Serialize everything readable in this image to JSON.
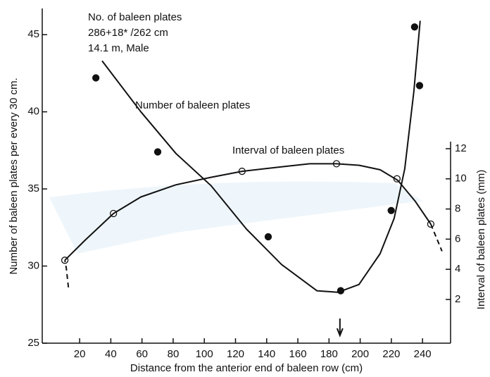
{
  "chart_data": {
    "type": "line",
    "x_label": "Distance from the anterior end of baleen row (cm)",
    "y_label": "Number of baleen plates per every 30 cm.",
    "y2_label": "Interval of baleen plates (mm)",
    "notes": [
      "No. of baleen plates",
      "286+18* /262 cm",
      "14.1 m, Male"
    ],
    "xlim": [
      -4,
      258
    ],
    "xticks": [
      20,
      40,
      60,
      80,
      100,
      120,
      140,
      160,
      180,
      200,
      220,
      240
    ],
    "ylim": [
      25,
      46.7
    ],
    "yticks": [
      25,
      30,
      35,
      40,
      45
    ],
    "y2lim": [
      -0.9,
      21.3
    ],
    "y2ticks": [
      2,
      4,
      6,
      8,
      10,
      12
    ],
    "arrow_x": 187,
    "color": "#111111",
    "series": [
      {
        "axis": "y",
        "marker": "filled",
        "x": [
          30.4,
          70.1,
          141,
          187.5,
          219.9,
          234.9,
          238.1
        ],
        "values": [
          42.2,
          37.4,
          31.9,
          28.4,
          33.6,
          45.5,
          41.7
        ]
      },
      {
        "name": "Number of baleen plates",
        "axis": "y",
        "marker": "none",
        "dashed": false,
        "x": [
          34.4,
          59.3,
          81.8,
          104.4,
          127,
          149.6,
          172.2,
          185.7,
          199.2,
          212.8,
          221.8,
          228.6,
          234.4,
          238.5
        ],
        "values": [
          43.3,
          40.0,
          37.3,
          35.2,
          32.4,
          30.1,
          28.4,
          28.3,
          28.8,
          30.8,
          33.1,
          36.3,
          41.3,
          45.9
        ]
      },
      {
        "axis": "y2",
        "marker": "open",
        "x": [
          10.5,
          41.7,
          124.2,
          184.8,
          223.6,
          245.3
        ],
        "values": [
          4.6,
          7.7,
          10.5,
          11.0,
          10.0,
          7.0
        ]
      },
      {
        "name": "Interval of baleen plates",
        "axis": "y2",
        "marker": "none",
        "dashed": false,
        "x": [
          10.5,
          23.2,
          41.7,
          59.3,
          81.7,
          104.3,
          124.2,
          149.5,
          167.6,
          184.8,
          199.2,
          212.8,
          224.1,
          235.4,
          245.3
        ],
        "values": [
          4.6,
          5.9,
          7.7,
          8.8,
          9.6,
          10.1,
          10.5,
          10.8,
          11.0,
          11.0,
          10.9,
          10.6,
          9.9,
          8.5,
          7.0
        ]
      },
      {
        "axis": "y2",
        "marker": "none",
        "dashed": true,
        "x": [
          12.8,
          11.4,
          10.5
        ],
        "values": [
          2.8,
          4.1,
          4.6
        ]
      },
      {
        "axis": "y2",
        "marker": "none",
        "dashed": true,
        "x": [
          245.3,
          252.5
        ],
        "values": [
          7.0,
          5.2
        ]
      }
    ]
  }
}
